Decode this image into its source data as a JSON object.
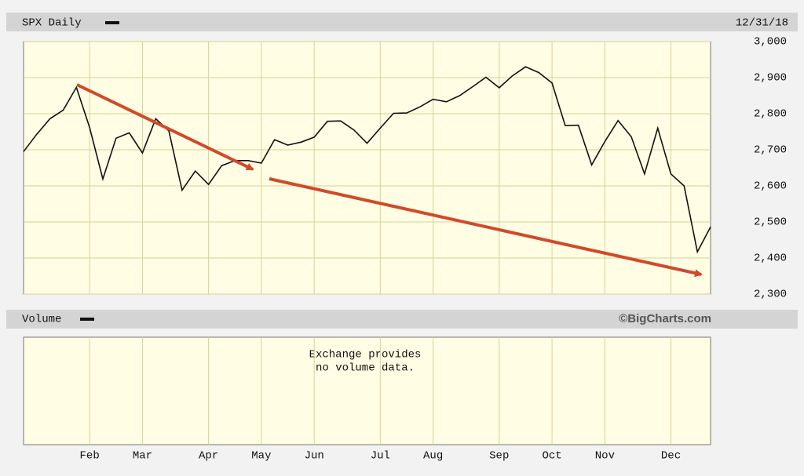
{
  "chart_data": {
    "type": "line",
    "title": "SPX Daily",
    "date": "12/31/18",
    "volume_title": "Volume",
    "credit": "©BigCharts.com",
    "volume_note": [
      "Exchange provides",
      "no volume data."
    ],
    "categories": [
      null,
      null,
      null,
      null,
      null,
      "Feb",
      null,
      null,
      null,
      "Mar",
      null,
      null,
      null,
      null,
      "Apr",
      null,
      null,
      null,
      "May",
      null,
      null,
      null,
      "Jun",
      null,
      null,
      null,
      null,
      "Jul",
      null,
      null,
      null,
      "Aug",
      null,
      null,
      null,
      null,
      "Sep",
      null,
      null,
      null,
      "Oct",
      null,
      null,
      null,
      "Nov",
      null,
      null,
      null,
      null,
      "Dec",
      null,
      null,
      null
    ],
    "series": [
      {
        "name": "SPX",
        "color": "#111111",
        "values": [
          2695,
          2743,
          2786,
          2810,
          2873,
          2762,
          2619,
          2732,
          2747,
          2691,
          2786,
          2752,
          2588,
          2641,
          2604,
          2656,
          2670,
          2670,
          2663,
          2728,
          2713,
          2721,
          2735,
          2779,
          2780,
          2755,
          2718,
          2760,
          2801,
          2802,
          2819,
          2840,
          2833,
          2850,
          2875,
          2901,
          2872,
          2905,
          2930,
          2914,
          2885,
          2767,
          2768,
          2658,
          2723,
          2781,
          2736,
          2633,
          2760,
          2633,
          2600,
          2417,
          2486
        ]
      }
    ],
    "ylim": [
      2300,
      3000
    ],
    "yticks": [
      {
        "value": 2300,
        "label": "2,300"
      },
      {
        "value": 2400,
        "label": "2,400"
      },
      {
        "value": 2500,
        "label": "2,500"
      },
      {
        "value": 2600,
        "label": "2,600"
      },
      {
        "value": 2700,
        "label": "2,700"
      },
      {
        "value": 2800,
        "label": "2,800"
      },
      {
        "value": 2900,
        "label": "2,900"
      },
      {
        "value": 3000,
        "label": "3,000"
      }
    ],
    "grid": true
  }
}
